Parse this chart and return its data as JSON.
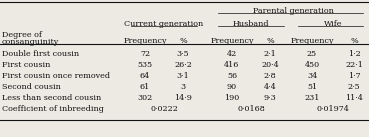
{
  "title_main": "Parental generation",
  "col_header2": "Current generation",
  "col_header3": "Husband",
  "col_header4": "Wife",
  "subheaders": [
    "Frequency",
    "%",
    "Frequency",
    "%",
    "Frequency",
    "%"
  ],
  "rows": [
    [
      "Double first cousin",
      "72",
      "3·5",
      "42",
      "2·1",
      "25",
      "1·2"
    ],
    [
      "First cousin",
      "535",
      "26·2",
      "416",
      "20·4",
      "450",
      "22·1"
    ],
    [
      "First cousin once removed",
      "64",
      "3·1",
      "56",
      "2·8",
      "34",
      "1·7"
    ],
    [
      "Second cousin",
      "61",
      "3",
      "90",
      "4·4",
      "51",
      "2·5"
    ],
    [
      "Less than second cousin",
      "302",
      "14·9",
      "190",
      "9·3",
      "231",
      "11·4"
    ],
    [
      "Coefficient of inbreeding",
      "0·0222",
      "",
      "0·0168",
      "",
      "0·01974",
      ""
    ]
  ],
  "bg_color": "#edeae4",
  "text_color": "#111111",
  "font_size": 5.8
}
